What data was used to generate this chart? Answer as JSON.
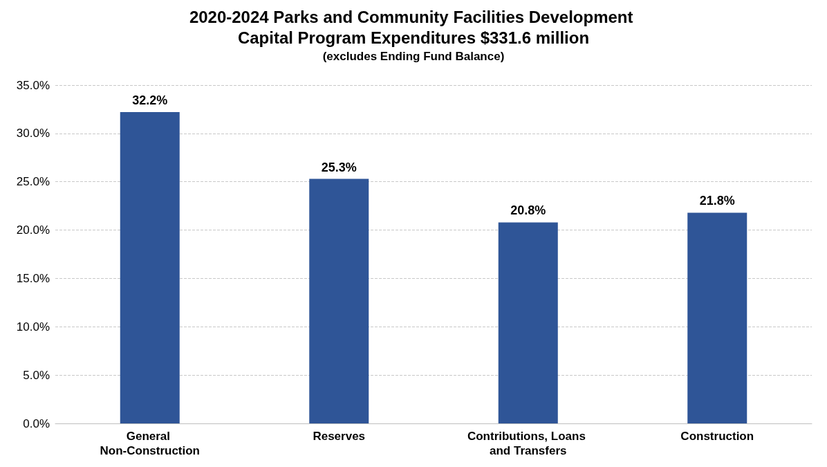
{
  "chart_data": {
    "type": "bar",
    "title": "2020-2024 Parks and Community Facilities Development Capital Program Expenditures $331.6 million",
    "subtitle": "(excludes Ending Fund Balance)",
    "categories": [
      "General Non-Construction",
      "Reserves",
      "Contributions, Loans and Transfers",
      "Construction"
    ],
    "values": [
      32.2,
      25.3,
      20.8,
      21.8
    ],
    "color": "#2f5597",
    "value_labels": [
      "32.2%",
      "25.3%",
      "20.8%",
      "21.8%"
    ],
    "ylim": [
      0,
      35
    ],
    "yticks": [
      {
        "value": 0,
        "label": "0.0%"
      },
      {
        "value": 5,
        "label": "5.0%"
      },
      {
        "value": 10,
        "label": "10.0%"
      },
      {
        "value": 15,
        "label": "15.0%"
      },
      {
        "value": 20,
        "label": "20.0%"
      },
      {
        "value": 25,
        "label": "25.0%"
      },
      {
        "value": 30,
        "label": "30.0%"
      },
      {
        "value": 35,
        "label": "35.0%"
      }
    ],
    "grid": "y"
  }
}
